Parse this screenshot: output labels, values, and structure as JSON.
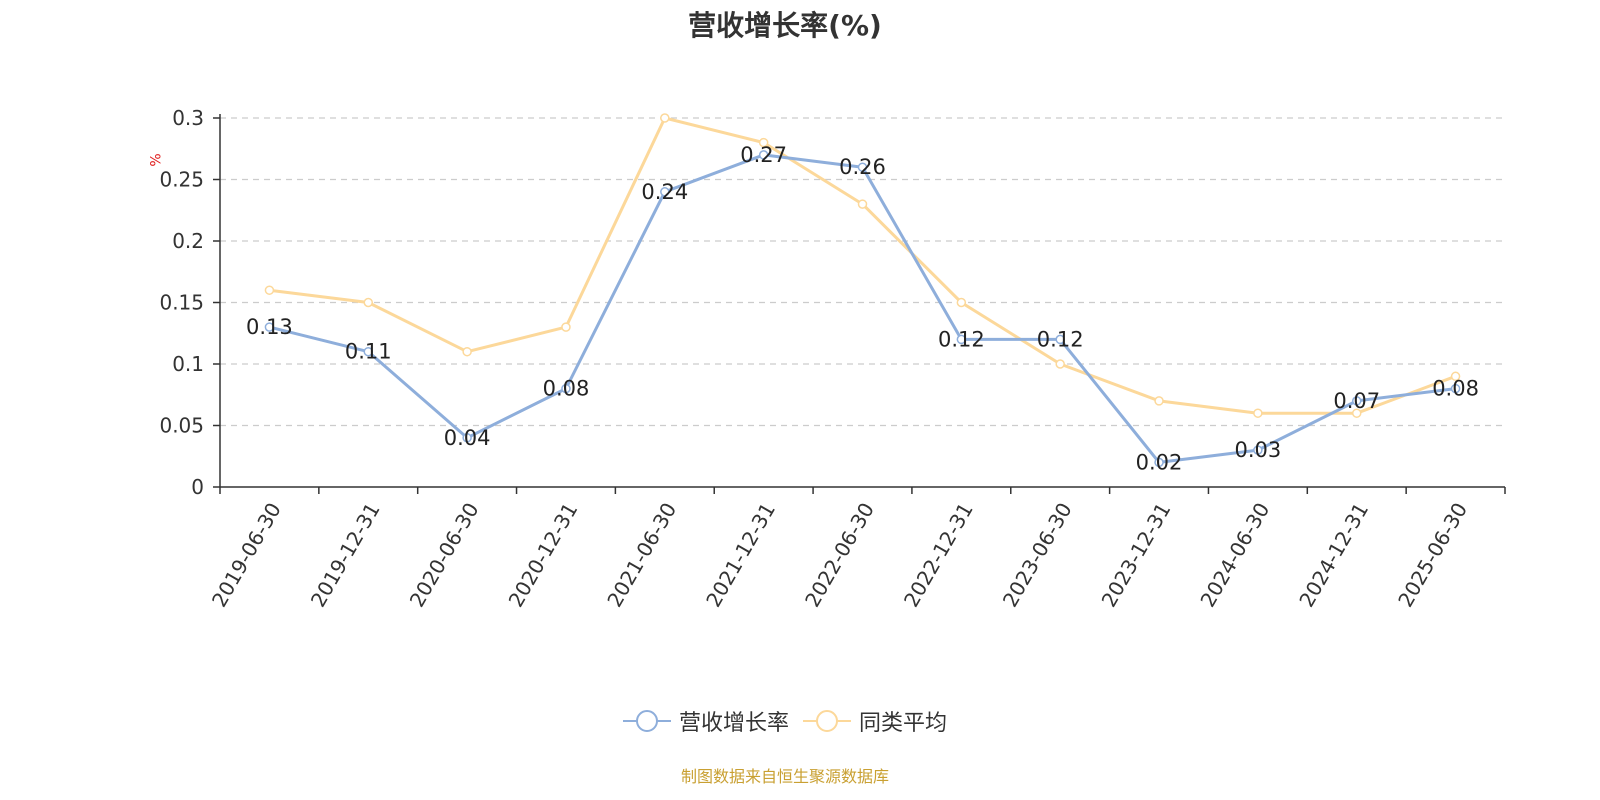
{
  "title": "营收增长率(%)",
  "unit_label": "%",
  "source_note": "制图数据来自恒生聚源数据库",
  "colors": {
    "series1": "#8eaedb",
    "series2": "#fcd89a",
    "grid": "#cccccc",
    "axis": "#333333"
  },
  "chart_data": {
    "type": "line",
    "title": "营收增长率(%)",
    "ylabel": "%",
    "ylim": [
      0,
      0.3
    ],
    "yticks": [
      "0",
      "0.05",
      "0.1",
      "0.15",
      "0.2",
      "0.25",
      "0.3"
    ],
    "grid": true,
    "legend_position": "bottom",
    "categories": [
      "2019-06-30",
      "2019-12-31",
      "2020-06-30",
      "2020-12-31",
      "2021-06-30",
      "2021-12-31",
      "2022-06-30",
      "2022-12-31",
      "2023-06-30",
      "2023-12-31",
      "2024-06-30",
      "2024-12-31",
      "2025-06-30"
    ],
    "series": [
      {
        "name": "营收增长率",
        "values": [
          0.13,
          0.11,
          0.04,
          0.08,
          0.24,
          0.27,
          0.26,
          0.12,
          0.12,
          0.02,
          0.03,
          0.07,
          0.08
        ],
        "labeled": true
      },
      {
        "name": "同类平均",
        "values": [
          0.16,
          0.15,
          0.11,
          0.13,
          0.3,
          0.28,
          0.23,
          0.15,
          0.1,
          0.07,
          0.06,
          0.06,
          0.09
        ],
        "labeled": false
      }
    ]
  }
}
